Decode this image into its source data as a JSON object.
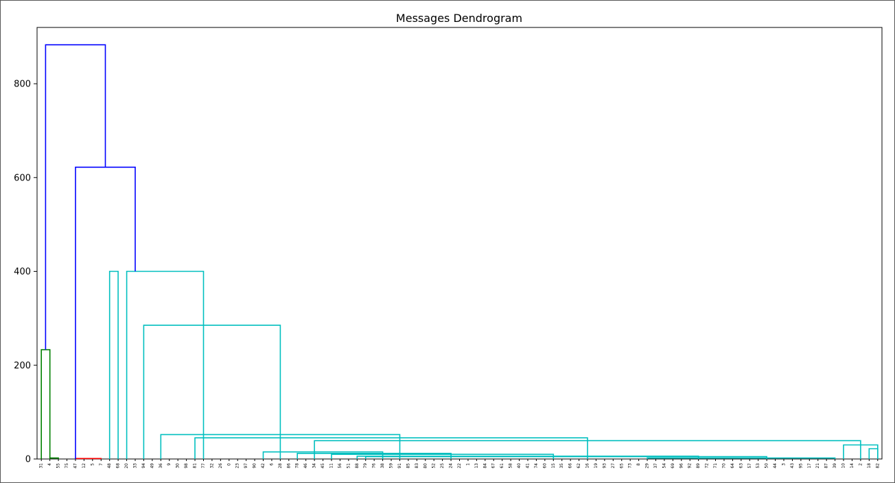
{
  "chart_data": {
    "type": "dendrogram",
    "title": "Messages Dendrogram",
    "xlabel": "",
    "ylabel": "",
    "ylim": [
      0,
      920
    ],
    "yticks": [
      0,
      200,
      400,
      600,
      800
    ],
    "leaf_labels": [
      "31",
      "4",
      "55",
      "75",
      "47",
      "12",
      "5",
      "7",
      "48",
      "68",
      "20",
      "33",
      "94",
      "49",
      "36",
      "9",
      "30",
      "98",
      "81",
      "77",
      "32",
      "26",
      "0",
      "23",
      "97",
      "90",
      "42",
      "6",
      "28",
      "86",
      "78",
      "46",
      "34",
      "45",
      "11",
      "56",
      "51",
      "88",
      "79",
      "76",
      "38",
      "59",
      "91",
      "85",
      "83",
      "80",
      "52",
      "25",
      "24",
      "22",
      "1",
      "13",
      "84",
      "67",
      "61",
      "58",
      "40",
      "41",
      "74",
      "60",
      "15",
      "35",
      "66",
      "62",
      "16",
      "19",
      "93",
      "27",
      "65",
      "73",
      "8",
      "29",
      "37",
      "54",
      "69",
      "96",
      "92",
      "89",
      "72",
      "71",
      "70",
      "64",
      "63",
      "57",
      "53",
      "50",
      "44",
      "3",
      "43",
      "95",
      "17",
      "21",
      "87",
      "39",
      "10",
      "14",
      "2",
      "18",
      "82"
    ],
    "links": [
      {
        "x": [
          0,
          0,
          1,
          1
        ],
        "y": [
          0,
          233,
          233,
          0
        ],
        "color": "#008000"
      },
      {
        "x": [
          1,
          1,
          2,
          2
        ],
        "y": [
          0,
          2,
          2,
          0
        ],
        "color": "#008000"
      },
      {
        "x": [
          4,
          4,
          7,
          7
        ],
        "y": [
          0,
          1,
          1,
          0
        ],
        "color": "#ff0000"
      },
      {
        "x": [
          8,
          8,
          9,
          9
        ],
        "y": [
          0,
          400,
          400,
          0
        ],
        "color": "#00bfbf"
      },
      {
        "x": [
          10,
          10,
          19,
          19
        ],
        "y": [
          0,
          400,
          400,
          0
        ],
        "color": "#00bfbf"
      },
      {
        "x": [
          12,
          12,
          28,
          28
        ],
        "y": [
          0,
          285,
          285,
          0
        ],
        "color": "#00bfbf"
      },
      {
        "x": [
          14,
          14,
          42,
          42
        ],
        "y": [
          0,
          52,
          52,
          0
        ],
        "color": "#00bfbf"
      },
      {
        "x": [
          18,
          18,
          64,
          64
        ],
        "y": [
          0,
          45,
          45,
          0
        ],
        "color": "#00bfbf"
      },
      {
        "x": [
          32,
          32,
          96,
          96
        ],
        "y": [
          0,
          39,
          39,
          0
        ],
        "color": "#00bfbf"
      },
      {
        "x": [
          26,
          26,
          40,
          40
        ],
        "y": [
          0,
          15,
          15,
          0
        ],
        "color": "#00bfbf"
      },
      {
        "x": [
          30,
          30,
          48,
          48
        ],
        "y": [
          0,
          12,
          12,
          0
        ],
        "color": "#00bfbf"
      },
      {
        "x": [
          34,
          34,
          60,
          60
        ],
        "y": [
          0,
          10,
          10,
          0
        ],
        "color": "#00bfbf"
      },
      {
        "x": [
          37,
          37,
          77,
          77
        ],
        "y": [
          0,
          6,
          6,
          0
        ],
        "color": "#00bfbf"
      },
      {
        "x": [
          38,
          38,
          85,
          85
        ],
        "y": [
          0,
          5,
          5,
          0
        ],
        "color": "#00bfbf"
      },
      {
        "x": [
          71,
          71,
          93,
          93
        ],
        "y": [
          0,
          2,
          2,
          0
        ],
        "color": "#00bfbf"
      },
      {
        "x": [
          94,
          94,
          98,
          98
        ],
        "y": [
          0,
          30,
          30,
          0
        ],
        "color": "#00bfbf"
      },
      {
        "x": [
          97,
          97,
          98,
          98
        ],
        "y": [
          0,
          22,
          22,
          0
        ],
        "color": "#00bfbf"
      },
      {
        "x": [
          4,
          4,
          11,
          11
        ],
        "y": [
          0,
          622,
          622,
          400
        ],
        "color": "#0000ff"
      },
      {
        "x": [
          0.5,
          0.5,
          7.5,
          7.5
        ],
        "y": [
          233,
          883,
          883,
          622
        ],
        "color": "#0000ff"
      }
    ]
  }
}
